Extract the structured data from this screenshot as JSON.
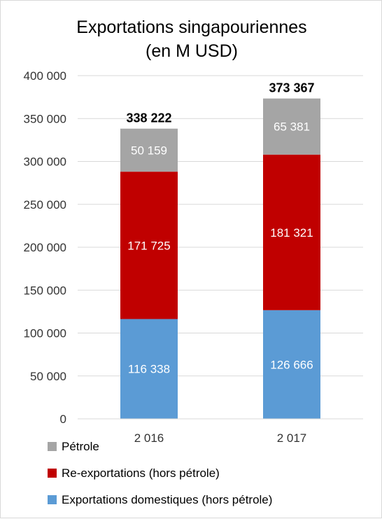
{
  "chart_data": {
    "type": "bar",
    "stacked": true,
    "title": "Exportations singapouriennes",
    "subtitle": "(en M USD)",
    "categories": [
      "2 016",
      "2 017"
    ],
    "series": [
      {
        "name": "Exportations domestiques (hors pétrole)",
        "color": "#5b9bd5",
        "values": [
          116338,
          126666
        ],
        "labels": [
          "116 338",
          "126 666"
        ]
      },
      {
        "name": "Re-exportations (hors pétrole)",
        "color": "#c00000",
        "values": [
          171725,
          181321
        ],
        "labels": [
          "171 725",
          "181 321"
        ]
      },
      {
        "name": "Pétrole",
        "color": "#a5a5a5",
        "values": [
          50159,
          65381
        ],
        "labels": [
          "50 159",
          "65 381"
        ]
      }
    ],
    "totals": [
      338222,
      373367
    ],
    "total_labels": [
      "338 222",
      "373 367"
    ],
    "y_ticks": [
      0,
      50000,
      100000,
      150000,
      200000,
      250000,
      300000,
      350000,
      400000
    ],
    "y_tick_labels": [
      "0",
      "50 000",
      "100 000",
      "150 000",
      "200 000",
      "250 000",
      "300 000",
      "350 000",
      "400 000"
    ],
    "ylim": [
      0,
      400000
    ],
    "grid": true,
    "legend_position": "bottom-left"
  }
}
